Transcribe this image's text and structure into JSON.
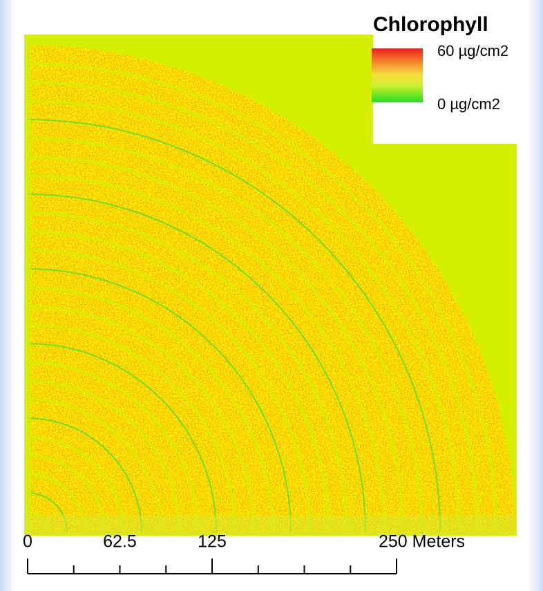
{
  "legend": {
    "title": "Chlorophyll",
    "max_label": "60 µg/cm2",
    "min_label": "0 µg/cm2"
  },
  "scale_bar": {
    "xlim": [
      0,
      250
    ],
    "xticks": [
      0,
      31.25,
      62.5,
      93.75,
      125,
      156.25,
      187.5,
      218.75,
      250
    ],
    "tick_labels": [
      0,
      62.5,
      125,
      {
        "value": 250,
        "label": "250 Meters"
      }
    ]
  }
}
